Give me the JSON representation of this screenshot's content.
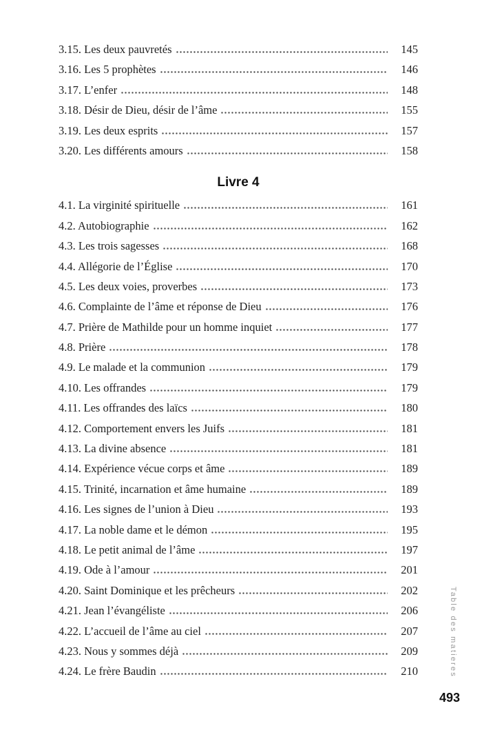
{
  "toc": {
    "sections": [
      {
        "heading": null,
        "entries": [
          {
            "label": "3.15. Les deux pauvretés",
            "page": "145"
          },
          {
            "label": "3.16. Les 5 prophètes",
            "page": "146"
          },
          {
            "label": "3.17. L’enfer",
            "page": "148"
          },
          {
            "label": "3.18. Désir de Dieu, désir de l’âme",
            "page": "155"
          },
          {
            "label": "3.19. Les deux esprits",
            "page": "157"
          },
          {
            "label": "3.20. Les différents amours",
            "page": "158"
          }
        ]
      },
      {
        "heading": "Livre 4",
        "entries": [
          {
            "label": "4.1. La virginité spirituelle",
            "page": "161"
          },
          {
            "label": "4.2. Autobiographie",
            "page": "162"
          },
          {
            "label": "4.3. Les trois sagesses",
            "page": "168"
          },
          {
            "label": "4.4. Allégorie de l’Église",
            "page": "170"
          },
          {
            "label": "4.5. Les deux voies, proverbes",
            "page": "173"
          },
          {
            "label": "4.6. Complainte de l’âme et réponse de Dieu",
            "page": "176"
          },
          {
            "label": "4.7. Prière de Mathilde pour un homme inquiet",
            "page": "177"
          },
          {
            "label": "4.8. Prière",
            "page": "178"
          },
          {
            "label": "4.9. Le malade et la communion",
            "page": "179"
          },
          {
            "label": "4.10. Les offrandes",
            "page": "179"
          },
          {
            "label": "4.11. Les offrandes des laïcs",
            "page": "180"
          },
          {
            "label": "4.12. Comportement envers les Juifs",
            "page": "181"
          },
          {
            "label": "4.13. La divine absence",
            "page": "181"
          },
          {
            "label": "4.14. Expérience vécue corps et âme",
            "page": "189"
          },
          {
            "label": "4.15. Trinité, incarnation et âme humaine",
            "page": "189"
          },
          {
            "label": "4.16. Les signes de l’union à Dieu",
            "page": "193"
          },
          {
            "label": "4.17. La noble dame et le démon",
            "page": "195"
          },
          {
            "label": "4.18. Le petit animal de l’âme",
            "page": "197"
          },
          {
            "label": "4.19. Ode à l’amour",
            "page": "201"
          },
          {
            "label": "4.20. Saint Dominique et les prêcheurs",
            "page": "202"
          },
          {
            "label": "4.21. Jean l’évangéliste",
            "page": "206"
          },
          {
            "label": "4.22. L’accueil de l’âme au ciel",
            "page": "207"
          },
          {
            "label": "4.23. Nous y sommes déjà",
            "page": "209"
          },
          {
            "label": "4.24. Le frère Baudin",
            "page": "210"
          }
        ]
      }
    ]
  },
  "sidebar": {
    "vertical_label": "Table des matieres"
  },
  "footer": {
    "page_number": "493"
  },
  "colors": {
    "background": "#ffffff",
    "text": "#1f1f1f",
    "heading": "#111111",
    "leader_dots": "#4a4a4a",
    "sidebar_label": "#9a9a9a"
  }
}
